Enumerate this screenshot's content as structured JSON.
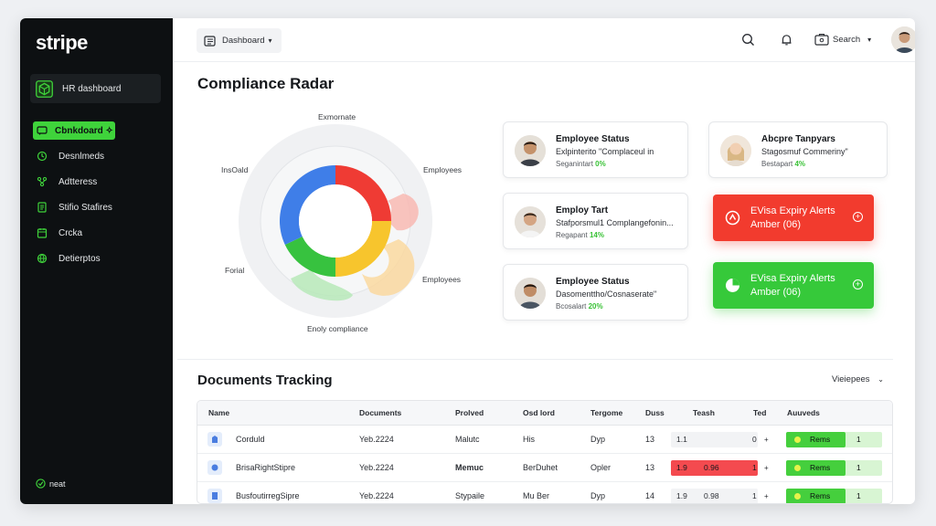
{
  "sidebar": {
    "logo": "stripe",
    "workspace": "HR dashboard",
    "items": [
      {
        "label": "Cbnkdoard ✧",
        "active": true
      },
      {
        "label": "Desnlmeds"
      },
      {
        "label": "Adtteress"
      },
      {
        "label": "Stifio Stafires"
      },
      {
        "label": "Crcka"
      },
      {
        "label": "Detierptos"
      }
    ],
    "footer": "neat"
  },
  "topbar": {
    "breadcrumb": "Dashboard",
    "search_label": "Search"
  },
  "radar": {
    "title": "Compliance Radar",
    "labels": {
      "top": "Exmornate",
      "top_right": "Employees",
      "left_top": "InsOald",
      "left_bottom": "Forial",
      "bottom_right": "Employees",
      "bottom": "Enoly compliance"
    },
    "segments": [
      {
        "color": "#ef3b34",
        "value": 25
      },
      {
        "color": "#f7c52d",
        "value": 25
      },
      {
        "color": "#37c23f",
        "value": 18
      },
      {
        "color": "#3f7ee8",
        "value": 32
      }
    ]
  },
  "cards": [
    {
      "title": "Employee Status",
      "line": "Exlpinterito \"Complaceul in",
      "meta": "Seganintart",
      "pct": "0%"
    },
    {
      "title": "Abcpre Tanpyars",
      "line": "Stagosmuf Commeriny\"",
      "meta": "Bestapart",
      "pct": "4%"
    },
    {
      "title": "Employ Tart",
      "line": "Stafporsmul1 Complangefonin...",
      "meta": "Regapant",
      "pct": "14%"
    },
    {
      "title": "Employee Status",
      "line": "Dasomenttho/Cosnaserate\"",
      "meta": "Bcosalart",
      "pct": "20%"
    }
  ],
  "alerts": [
    {
      "line1": "EVisa Expiry Alerts",
      "line2": "Amber  (06)",
      "color": "#f23b2e"
    },
    {
      "line1": "EVisa Expiry Alerts",
      "line2": "Amber  (06)",
      "color": "#36c93a"
    }
  ],
  "documents": {
    "title": "Documents Tracking",
    "view_selector": "Vieiepees",
    "columns": [
      "Name",
      "Documents",
      "Prolved",
      "Osd lord",
      "Tergome",
      "Duss",
      "Teash",
      "Ted",
      "Auuveds"
    ],
    "rows": [
      {
        "name": "Corduld",
        "documents": "Yeb.2224",
        "prolved": "Malutc",
        "osd": "His",
        "tergome": "Dyp",
        "duss": "13",
        "teash_a": "1.1",
        "teash_b": "",
        "ted": "0",
        "status": "Rems",
        "status_n": "1",
        "bar": "normal"
      },
      {
        "name": "BrisaRightStipre",
        "documents": "Yeb.2224",
        "prolved": "Memuc",
        "osd": "BerDuhet",
        "tergome": "Opler",
        "duss": "13",
        "teash_a": "1.9",
        "teash_b": "0.96",
        "ted": "1",
        "status": "Rems",
        "status_n": "1",
        "bar": "red"
      },
      {
        "name": "BusfoutirregSipre",
        "documents": "Yeb.2224",
        "prolved": "Stypaile",
        "osd": "Mu Ber",
        "tergome": "Dyp",
        "duss": "14",
        "teash_a": "1.9",
        "teash_b": "0.98",
        "ted": "1",
        "status": "Rems",
        "status_n": "1",
        "bar": "normal"
      }
    ]
  }
}
